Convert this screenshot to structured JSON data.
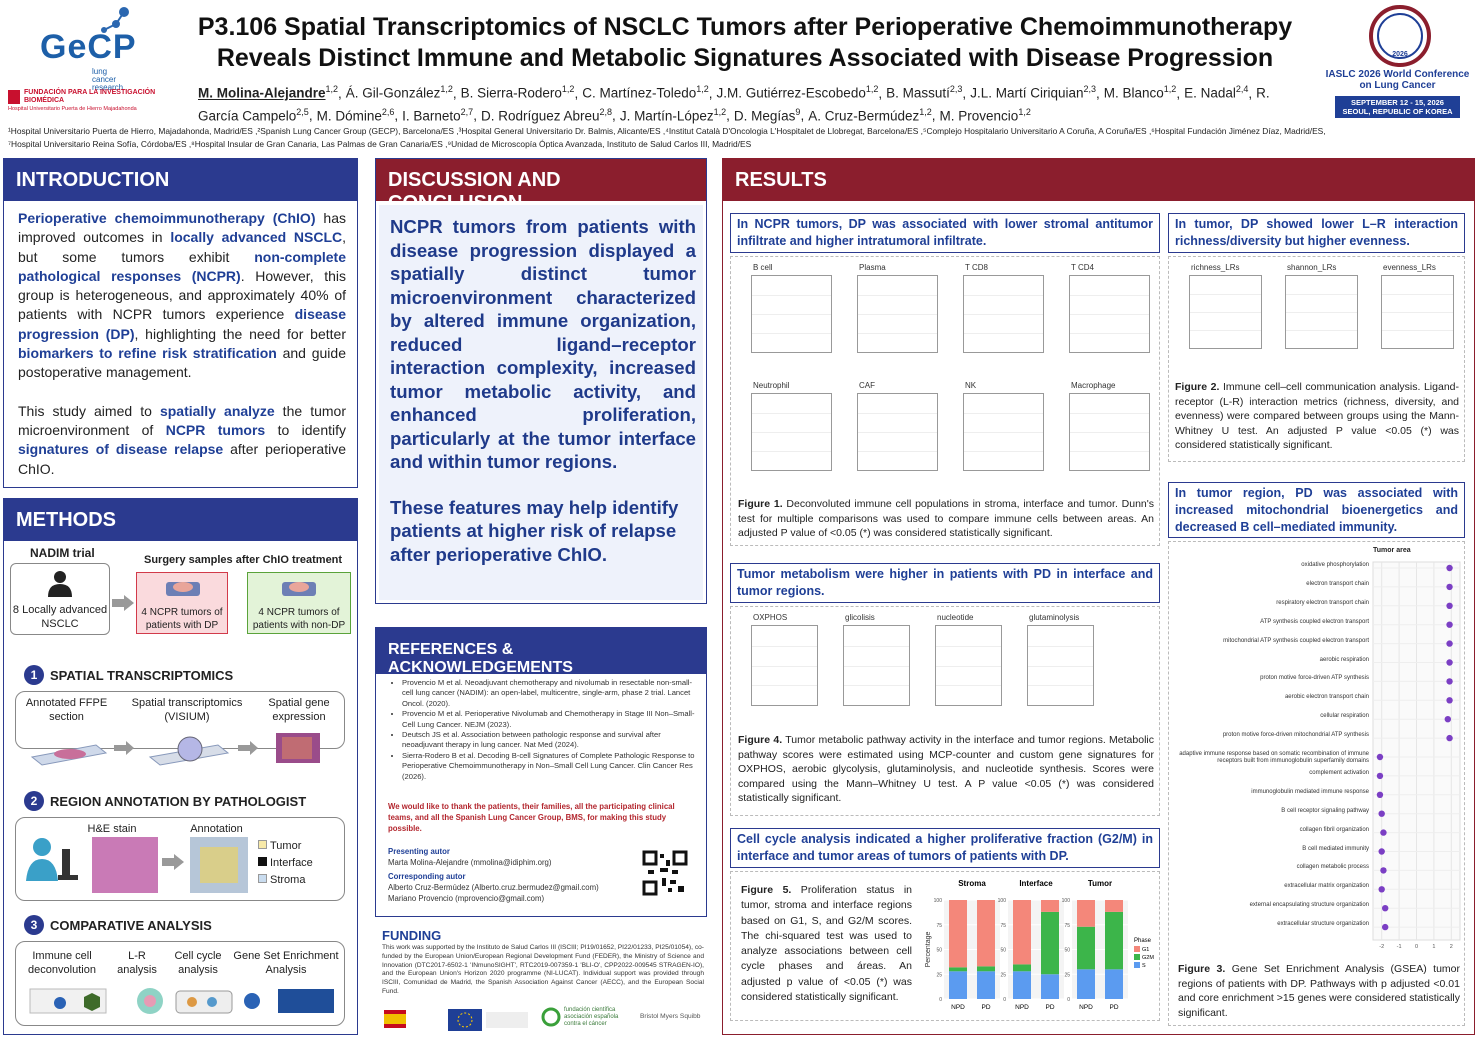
{
  "header": {
    "logo": {
      "name": "GeCP",
      "tagline": "lung cancer research"
    },
    "foundation": {
      "name": "FUNDACIÓN PARA LA INVESTIGACIÓN BIOMÉDICA",
      "hospital": "Hospital Universitario Puerta de Hierro Majadahonda"
    },
    "title": [
      "P3.106 Spatial Transcriptomics of NSCLC Tumors after Perioperative Chemoimmunotherapy",
      "Reveals Distinct Immune and Metabolic Signatures Associated with Disease Progression"
    ],
    "authors": [
      {
        "name": "M. Molina-Alejandre",
        "aff": "1,2",
        "sep": ","
      },
      {
        "name": "Á. Gil-González",
        "aff": "1,2",
        "sep": ","
      },
      {
        "name": "B. Sierra-Rodero",
        "aff": "1,2",
        "sep": ","
      },
      {
        "name": "C. Martínez-Toledo",
        "aff": "1,2",
        "sep": ","
      },
      {
        "name": "J.M. Gutiérrez-Escobedo",
        "aff": "1,2",
        "sep": ","
      },
      {
        "name": "B. Massutí",
        "aff": "2,3",
        "sep": ","
      },
      {
        "name": "J.L. Martí Ciriquian",
        "aff": "2,3",
        "sep": ","
      },
      {
        "name": "M. Blanco",
        "aff": "1,2",
        "sep": ","
      },
      {
        "name": "E. Nadal",
        "aff": "2,4",
        "sep": ","
      },
      {
        "name": "R. García Campelo",
        "aff": "2,5",
        "sep": ","
      },
      {
        "name": "M. Dómine",
        "aff": "2,6",
        "sep": ","
      },
      {
        "name": "I. Barneto",
        "aff": "2,7",
        "sep": ","
      },
      {
        "name": "D. Rodríguez Abreu",
        "aff": "2,8",
        "sep": ","
      },
      {
        "name": "J. Martín-López",
        "aff": "1,2",
        "sep": ","
      },
      {
        "name": "D. Megías",
        "aff": "9",
        "sep": ","
      },
      {
        "name": "A. Cruz-Bermúdez",
        "aff": "1,2",
        "sep": ","
      },
      {
        "name": "M. Provencio",
        "aff": "1,2"
      }
    ],
    "affiliations": [
      "¹Hospital Universitario Puerta de Hierro, Majadahonda, Madrid/ES ,²Spanish Lung Cancer Group (GECP), Barcelona/ES ,³Hospital General Universitario Dr. Balmis, Alicante/ES ,⁴Institut Català D'Oncologia L'Hospitalet de Llobregat, Barcelona/ES ,⁵Complejo Hospitalario Universitario A Coruña, A Coruña/ES ,⁶Hospital Fundación Jiménez Díaz, Madrid/ES,",
      "⁷Hospital Universitario Reina Sofía, Córdoba/ES ,⁸Hospital Insular de Gran Canaria, Las Palmas de Gran Canaria/ES ,⁹Unidad de Microscopía Óptica Avanzada, Instituto de Salud Carlos III, Madrid/ES"
    ],
    "conference": {
      "year": "2026",
      "name": "IASLC 2026 World Conference on Lung Cancer",
      "dates": "SEPTEMBER 12 - 15, 2026",
      "place": "SEOUL, REPUBLIC OF KOREA"
    }
  },
  "introduction": {
    "heading": "INTRODUCTION",
    "paragraphs": [
      [
        {
          "text": "Perioperative chemoimmunotherapy (ChIO)",
          "bold": true
        },
        {
          "text": " has improved outcomes in "
        },
        {
          "text": "locally advanced NSCLC",
          "bold": true
        },
        {
          "text": ", but some tumors exhibit "
        },
        {
          "text": "non-complete pathological responses (NCPR)",
          "bold": true
        },
        {
          "text": ". However, this group is heterogeneous, and approximately 40% of patients with NCPR tumors experience "
        },
        {
          "text": "disease progression (DP)",
          "bold": true
        },
        {
          "text": ", highlighting the need for better "
        },
        {
          "text": "biomarkers to refine risk stratification",
          "bold": true
        },
        {
          "text": " and guide postoperative management."
        }
      ],
      [
        {
          "text": "This study aimed to "
        },
        {
          "text": "spatially analyze",
          "bold": true
        },
        {
          "text": " the tumor microenvironment of "
        },
        {
          "text": "NCPR tumors",
          "bold": true
        },
        {
          "text": " to identify "
        },
        {
          "text": "signatures of disease relapse",
          "bold": true
        },
        {
          "text": " after perioperative ChIO."
        }
      ]
    ]
  },
  "methods": {
    "heading": "METHODS",
    "trial": "NADIM trial",
    "cohort": "8 Locally advanced NSCLC",
    "surgery": "Surgery samples after ChIO treatment",
    "group_dp": "4 NCPR tumors of patients with DP",
    "group_nondp": "4 NCPR tumors of patients with non-DP",
    "steps": [
      {
        "number": "1",
        "title": "SPATIAL TRANSCRIPTOMICS",
        "items": [
          "Annotated FFPE section",
          "Spatial transcriptomics (VISIUM)",
          "Spatial gene expression"
        ]
      },
      {
        "number": "2",
        "title": "REGION ANNOTATION BY PATHOLOGIST",
        "items": [
          "H&E stain",
          "Annotation"
        ],
        "legend": [
          "Tumor",
          "Interface",
          "Stroma"
        ]
      },
      {
        "number": "3",
        "title": "COMPARATIVE ANALYSIS",
        "items": [
          "Immune cell deconvolution",
          "L-R analysis",
          "Cell cycle analysis",
          "Gene Set Enrichment Analysis"
        ]
      }
    ]
  },
  "discussion": {
    "heading": "DISCUSSION AND CONCLUSION",
    "paragraphs": [
      "NCPR tumors from patients with disease progression displayed a spatially distinct tumor microenvironment characterized by altered immune organization, reduced ligand–receptor interaction complexity, increased tumor metabolic activity, and enhanced proliferation, particularly at the tumor interface and within tumor regions.",
      "These features may help identify patients at higher risk of relapse after perioperative ChIO."
    ]
  },
  "references": {
    "heading": "REFERENCES & ACKNOWLEDGEMENTS",
    "items": [
      "Provencio M et al. Neoadjuvant chemotherapy and nivolumab in resectable non-small-cell lung cancer (NADIM): an open-label, multicentre, single-arm, phase 2 trial. Lancet Oncol. (2020).",
      "Provencio M et al. Perioperative Nivolumab and Chemotherapy in Stage III Non–Small-Cell Lung Cancer. NEJM (2023).",
      "Deutsch JS et al. Association between pathologic response and survival after neoadjuvant therapy in lung cancer. Nat Med (2024).",
      "Sierra-Rodero B et al. Decoding B-cell Signatures of Complete Pathologic Response to Perioperative Chemoimmunotherapy in Non–Small Cell Lung Cancer. Clin Cancer Res (2026)."
    ],
    "acknowledgement": "We would like to thank the patients, their families, all the participating clinical teams, and all the Spanish Lung Cancer Group, BMS, for making this study possible.",
    "presenting_label": "Presenting autor",
    "presenting": "Marta Molina-Alejandre (mmolina@idiphim.org)",
    "corresponding_label": "Corresponding autor",
    "corresponding": [
      "Alberto Cruz-Bermúdez (Alberto.cruz.bermudez@gmail.com)",
      "Mariano Provencio (mprovencio@gmail.com)"
    ]
  },
  "funding": {
    "heading": "FUNDING",
    "text": "This work was supported by the Instituto de Salud Carlos III (ISCIII; PI19/01652, PI22/01233, PI25/01054), co-funded by the European Union/European Regional Development Fund (FEDER), the Ministry of Science and Innovation (DTC2017-6502-1 'INmunoSIGHT', RTC2019-007359-1 'BLI-O', CPP2022-009545 STRAGEN-IO), and the European Union's Horizon 2020 programme (NI-LUCAT). Individual support was provided through ISCIII, Comunidad de Madrid, the Spanish Association Against Cancer (AECC), and the European Social Fund.",
    "sponsors": [
      "fundación científica asociación española contra el cáncer",
      "Bristol Myers Squibb"
    ]
  },
  "results": {
    "heading": "RESULTS",
    "fig1": {
      "header": "In NCPR tumors, DP was associated with lower stromal antitumor infiltrate and higher intratumoral infiltrate.",
      "panels": [
        "B cell",
        "Plasma",
        "T CD8",
        "T CD4",
        "Neutrophil",
        "CAF",
        "NK",
        "Macrophage"
      ],
      "caption_label": "Figure 1.",
      "caption": " Deconvoluted immune cell populations in stroma, interface and tumor. Dunn's test for multiple comparisons was used to compare immune cells between areas. An adjusted P value of <0.05 (*) was considered statistically significant."
    },
    "fig2": {
      "header": "In tumor, DP showed lower L–R interaction richness/diversity but higher evenness.",
      "panels": [
        "richness_LRs",
        "shannon_LRs",
        "evenness_LRs"
      ],
      "caption_label": "Figure 2.",
      "caption": " Immune cell–cell communication analysis. Ligand-receptor (L-R) interaction metrics (richness, diversity, and evenness) were compared between groups using the Mann-Whitney U test. An adjusted P value <0.05 (*) was considered statistically significant."
    },
    "fig4": {
      "header": "Tumor metabolism were higher in patients with PD in interface and tumor regions.",
      "panels": [
        "OXPHOS",
        "glicolisis",
        "nucleotide",
        "glutaminolysis"
      ],
      "caption_label": "Figure 4.",
      "caption": " Tumor metabolic pathway activity in the interface and tumor regions. Metabolic pathway scores were estimated using MCP-counter and custom gene signatures for OXPHOS, aerobic glycolysis, glutaminolysis, and nucleotide synthesis. Scores were compared using the Mann–Whitney U test. A P value <0.05 (*) was considered statistically significant."
    },
    "fig5": {
      "header": "Cell cycle analysis indicated a higher proliferative fraction (G2/M) in interface and tumor areas of tumors of patients with DP.",
      "caption_label": "Figure 5.",
      "caption": " Proliferation status in tumor, stroma and interface regions based on G1, S, and G2/M scores. The chi-squared test was used to analyze associations between cell cycle phases and áreas. An adjusted p value of <0.05 (*) was considered statistically significant.",
      "chart": {
        "type": "stacked_bar",
        "ylabel": "Percentage",
        "ylim": [
          0,
          100
        ],
        "yticks": [
          0,
          25,
          50,
          75,
          100
        ],
        "categories": [
          "NPD",
          "PD"
        ],
        "legend_title": "Phase",
        "phases": [
          {
            "name": "G1",
            "color": "#f4877a"
          },
          {
            "name": "G2M",
            "color": "#3cb54a"
          },
          {
            "name": "S",
            "color": "#5b9bf0"
          }
        ],
        "facets": [
          {
            "title": "Stroma",
            "values": [
              [
                68,
                67
              ],
              [
                4,
                5
              ],
              [
                28,
                28
              ]
            ]
          },
          {
            "title": "Interface",
            "values": [
              [
                65,
                12
              ],
              [
                7,
                63
              ],
              [
                28,
                25
              ]
            ]
          },
          {
            "title": "Tumor",
            "values": [
              [
                27,
                12
              ],
              [
                43,
                58
              ],
              [
                30,
                30
              ]
            ]
          }
        ]
      }
    },
    "fig3": {
      "header": "In tumor region, PD was associated with increased mitochondrial bioenergetics and decreased B cell–mediated immunity.",
      "caption_label": "Figure 3.",
      "caption": " Gene Set Enrichment Analysis (GSEA) tumor regions of patients with DP. Pathways with p adjusted <0.01 and core enrichment >15 genes were considered statistically significant.",
      "chart": {
        "type": "dot",
        "title": "Tumor area",
        "color": "#7b3fc4",
        "xlim": [
          -2.5,
          2.5
        ],
        "xticks": [
          -2,
          -1,
          0,
          1,
          2
        ],
        "terms": [
          "oxidative phosphorylation",
          "electron transport chain",
          "respiratory electron transport chain",
          "ATP synthesis coupled electron transport",
          "mitochondrial ATP synthesis coupled electron transport",
          "aerobic respiration",
          "proton motive force-driven ATP synthesis",
          "aerobic electron transport chain",
          "cellular respiration",
          "proton motive force-driven mitochondrial ATP synthesis",
          "adaptive immune response based on somatic recombination of immune receptors built from immunoglobulin superfamily domains",
          "complement activation",
          "immunoglobulin mediated immune response",
          "B cell receptor signaling pathway",
          "collagen fibril organization",
          "B cell mediated immunity",
          "collagen metabolic process",
          "extracellular matrix organization",
          "external encapsulating structure organization",
          "extracellular structure organization"
        ],
        "values": [
          1.9,
          1.9,
          1.9,
          1.9,
          1.9,
          1.9,
          1.9,
          1.9,
          1.8,
          1.9,
          -2.1,
          -2.1,
          -2.1,
          -2.0,
          -1.9,
          -2.0,
          -1.9,
          -2.0,
          -1.8,
          -1.8
        ]
      }
    }
  }
}
